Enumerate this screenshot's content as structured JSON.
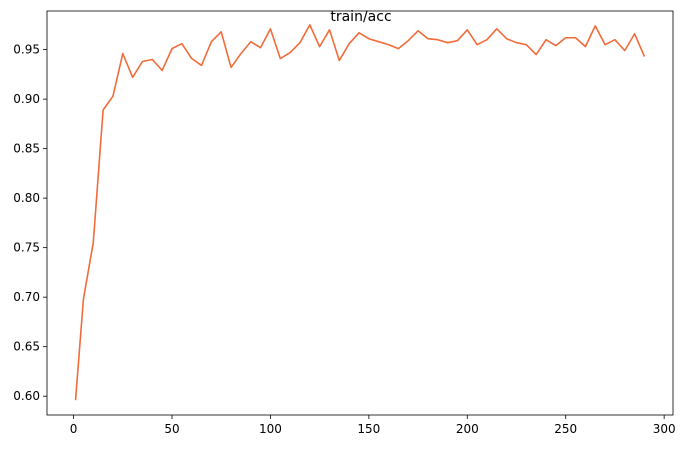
{
  "chart_data": {
    "type": "line",
    "title": "train/acc",
    "xlabel": "",
    "ylabel": "",
    "xlim": [
      -13.5,
      304.5
    ],
    "ylim": [
      0.581,
      0.989
    ],
    "xticks": [
      0,
      50,
      100,
      150,
      200,
      250,
      300
    ],
    "yticks": [
      0.6,
      0.65,
      0.7,
      0.75,
      0.8,
      0.85,
      0.9,
      0.95
    ],
    "ytick_format_decimals": 2,
    "grid": false,
    "legend": "none",
    "line_color": "#f26b3a",
    "series": [
      {
        "x": [
          1,
          5,
          10,
          15,
          20,
          25,
          30,
          35,
          40,
          45,
          50,
          55,
          60,
          65,
          70,
          75,
          80,
          85,
          90,
          95,
          100,
          105,
          110,
          115,
          120,
          125,
          130,
          135,
          140,
          145,
          150,
          155,
          160,
          165,
          170,
          175,
          180,
          185,
          190,
          195,
          200,
          205,
          210,
          215,
          220,
          225,
          230,
          235,
          240,
          245,
          250,
          255,
          260,
          265,
          270,
          275,
          280,
          285,
          290
        ],
        "values": [
          0.596,
          0.698,
          0.755,
          0.889,
          0.903,
          0.946,
          0.922,
          0.938,
          0.94,
          0.929,
          0.951,
          0.956,
          0.941,
          0.934,
          0.958,
          0.968,
          0.932,
          0.946,
          0.958,
          0.952,
          0.971,
          0.941,
          0.947,
          0.957,
          0.975,
          0.953,
          0.97,
          0.939,
          0.956,
          0.967,
          0.961,
          0.958,
          0.955,
          0.951,
          0.959,
          0.969,
          0.961,
          0.96,
          0.957,
          0.959,
          0.97,
          0.955,
          0.96,
          0.971,
          0.961,
          0.957,
          0.955,
          0.945,
          0.96,
          0.954,
          0.962,
          0.962,
          0.953,
          0.974,
          0.955,
          0.96,
          0.949,
          0.966,
          0.943
        ]
      }
    ]
  }
}
